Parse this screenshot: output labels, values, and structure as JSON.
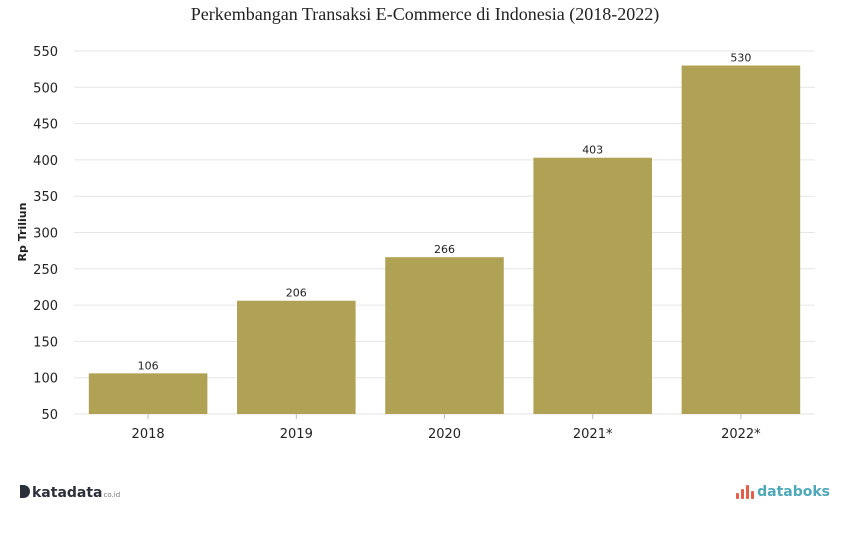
{
  "chart_data": {
    "type": "bar",
    "title": "Perkembangan Transaksi E-Commerce di Indonesia (2018-2022)",
    "ylabel": "Rp Triliun",
    "xlabel": "",
    "categories": [
      "2018",
      "2019",
      "2020",
      "2021*",
      "2022*"
    ],
    "values": [
      106,
      206,
      266,
      403,
      530
    ],
    "ylim": [
      50,
      550
    ],
    "yticks": [
      50,
      100,
      150,
      200,
      250,
      300,
      350,
      400,
      450,
      500,
      550
    ],
    "bar_color": "#b0a255",
    "grid": true
  },
  "branding": {
    "left_name": "katadata",
    "left_suffix": "co.id",
    "right_name": "databoks",
    "right_color": "#4fa8b8",
    "right_mark_color": "#e0604b"
  }
}
